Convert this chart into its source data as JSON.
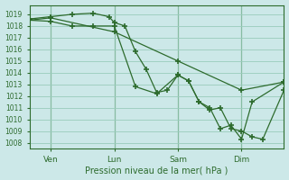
{
  "xlabel": "Pression niveau de la mer( hPa )",
  "bg_color": "#cce8e8",
  "grid_color": "#99ccbb",
  "line_color": "#2d6b2d",
  "ylim": [
    1007.5,
    1019.8
  ],
  "yticks": [
    1008,
    1009,
    1010,
    1011,
    1012,
    1013,
    1014,
    1015,
    1016,
    1017,
    1018,
    1019
  ],
  "xlim": [
    0,
    96
  ],
  "xtick_positions": [
    8,
    32,
    56,
    80
  ],
  "xtick_labels": [
    "Ven",
    "Lun",
    "Sam",
    "Dim"
  ],
  "line_straight": {
    "x": [
      0,
      8,
      32,
      56,
      80,
      96
    ],
    "y": [
      1018.5,
      1018.7,
      1017.5,
      1015.0,
      1012.5,
      1013.2
    ]
  },
  "line_jagged1": {
    "x": [
      0,
      8,
      16,
      24,
      30,
      32,
      36,
      40,
      44,
      48,
      52,
      56,
      60,
      64,
      68,
      72,
      76,
      80,
      84,
      88,
      96
    ],
    "y": [
      1018.6,
      1018.8,
      1019.0,
      1019.1,
      1018.8,
      1018.3,
      1018.0,
      1015.8,
      1014.3,
      1012.3,
      1012.5,
      1013.8,
      1013.3,
      1011.5,
      1010.8,
      1011.0,
      1009.2,
      1009.0,
      1008.5,
      1008.3,
      1012.5
    ]
  },
  "line_jagged2": {
    "x": [
      0,
      8,
      16,
      24,
      32,
      40,
      48,
      56,
      60,
      64,
      68,
      72,
      76,
      80,
      84,
      96
    ],
    "y": [
      1018.5,
      1018.4,
      1018.0,
      1018.0,
      1018.0,
      1012.8,
      1012.2,
      1013.8,
      1013.3,
      1011.5,
      1011.0,
      1009.2,
      1009.5,
      1008.3,
      1011.5,
      1013.2
    ]
  }
}
